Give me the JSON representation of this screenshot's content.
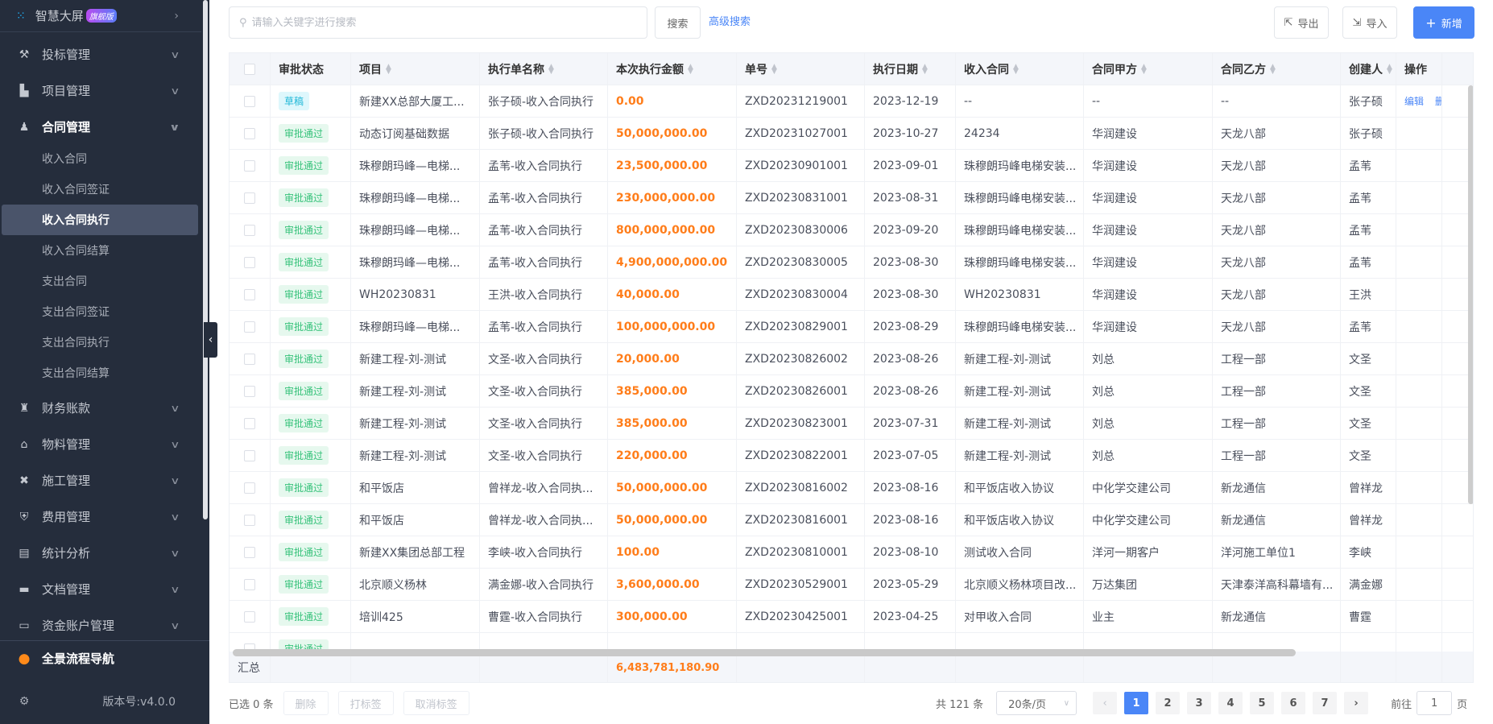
{
  "sidebar": {
    "top": {
      "label": "智慧大屏",
      "badge": "旗舰版",
      "icon": "dashboard-icon"
    },
    "items": [
      {
        "label": "投标管理",
        "icon": "gavel-icon",
        "top": 45
      },
      {
        "label": "项目管理",
        "icon": "building-icon",
        "top": 90
      },
      {
        "label": "合同管理",
        "icon": "stamp-icon",
        "top": 135,
        "open": true
      },
      {
        "label": "财务账款",
        "icon": "money-bag-icon",
        "top": 484
      },
      {
        "label": "物料管理",
        "icon": "warehouse-icon",
        "top": 529
      },
      {
        "label": "施工管理",
        "icon": "tools-icon",
        "top": 574
      },
      {
        "label": "费用管理",
        "icon": "shield-yen-icon",
        "top": 619
      },
      {
        "label": "统计分析",
        "icon": "chart-box-icon",
        "top": 664
      },
      {
        "label": "文档管理",
        "icon": "folder-icon",
        "top": 709
      },
      {
        "label": "资金账户管理",
        "icon": "card-icon",
        "top": 754
      }
    ],
    "subitems": [
      "收入合同",
      "收入合同签证",
      "收入合同执行",
      "收入合同结算",
      "支出合同",
      "支出合同签证",
      "支出合同执行",
      "支出合同结算"
    ],
    "active_sub": "收入合同执行",
    "nav_label": "全景流程导航",
    "version": "版本号:v4.0.0"
  },
  "toolbar": {
    "search_placeholder": "请输入关键字进行搜索",
    "search": "搜索",
    "advanced": "高级搜索",
    "export": "导出",
    "import": "导入",
    "add": "新增"
  },
  "table": {
    "columns": [
      "",
      "审批状态",
      "项目",
      "执行单名称",
      "本次执行金额",
      "单号",
      "执行日期",
      "收入合同",
      "合同甲方",
      "合同乙方",
      "创建人",
      "操作"
    ],
    "sortable": [
      false,
      false,
      true,
      true,
      true,
      true,
      true,
      true,
      true,
      true,
      true,
      false
    ],
    "rows": [
      [
        "草稿",
        "新建XX总部大厦工...",
        "张子硕-收入合同执行",
        "0.00",
        "ZXD20231219001",
        "2023-12-19",
        "--",
        "--",
        "--",
        "张子硕"
      ],
      [
        "审批通过",
        "动态订阅基础数据",
        "张子硕-收入合同执行",
        "50,000,000.00",
        "ZXD20231027001",
        "2023-10-27",
        "24234",
        "华润建设",
        "天龙八部",
        "张子硕"
      ],
      [
        "审批通过",
        "珠穆朗玛峰—电梯...",
        "孟苇-收入合同执行",
        "23,500,000.00",
        "ZXD20230901001",
        "2023-09-01",
        "珠穆朗玛峰电梯安装...",
        "华润建设",
        "天龙八部",
        "孟苇"
      ],
      [
        "审批通过",
        "珠穆朗玛峰—电梯...",
        "孟苇-收入合同执行",
        "230,000,000.00",
        "ZXD20230831001",
        "2023-08-31",
        "珠穆朗玛峰电梯安装...",
        "华润建设",
        "天龙八部",
        "孟苇"
      ],
      [
        "审批通过",
        "珠穆朗玛峰—电梯...",
        "孟苇-收入合同执行",
        "800,000,000.00",
        "ZXD20230830006",
        "2023-09-20",
        "珠穆朗玛峰电梯安装...",
        "华润建设",
        "天龙八部",
        "孟苇"
      ],
      [
        "审批通过",
        "珠穆朗玛峰—电梯...",
        "孟苇-收入合同执行",
        "4,900,000,000.00",
        "ZXD20230830005",
        "2023-08-30",
        "珠穆朗玛峰电梯安装...",
        "华润建设",
        "天龙八部",
        "孟苇"
      ],
      [
        "审批通过",
        "WH20230831",
        "王洪-收入合同执行",
        "40,000.00",
        "ZXD20230830004",
        "2023-08-30",
        "WH20230831",
        "华润建设",
        "天龙八部",
        "王洪"
      ],
      [
        "审批通过",
        "珠穆朗玛峰—电梯...",
        "孟苇-收入合同执行",
        "100,000,000.00",
        "ZXD20230829001",
        "2023-08-29",
        "珠穆朗玛峰电梯安装...",
        "华润建设",
        "天龙八部",
        "孟苇"
      ],
      [
        "审批通过",
        "新建工程-刘-测试",
        "文圣-收入合同执行",
        "20,000.00",
        "ZXD20230826002",
        "2023-08-26",
        "新建工程-刘-测试",
        "刘总",
        "工程一部",
        "文圣"
      ],
      [
        "审批通过",
        "新建工程-刘-测试",
        "文圣-收入合同执行",
        "385,000.00",
        "ZXD20230826001",
        "2023-08-26",
        "新建工程-刘-测试",
        "刘总",
        "工程一部",
        "文圣"
      ],
      [
        "审批通过",
        "新建工程-刘-测试",
        "文圣-收入合同执行",
        "385,000.00",
        "ZXD20230823001",
        "2023-07-31",
        "新建工程-刘-测试",
        "刘总",
        "工程一部",
        "文圣"
      ],
      [
        "审批通过",
        "新建工程-刘-测试",
        "文圣-收入合同执行",
        "220,000.00",
        "ZXD20230822001",
        "2023-07-05",
        "新建工程-刘-测试",
        "刘总",
        "工程一部",
        "文圣"
      ],
      [
        "审批通过",
        "和平饭店",
        "曾祥龙-收入合同执...",
        "50,000,000.00",
        "ZXD20230816002",
        "2023-08-16",
        "和平饭店收入协议",
        "中化学交建公司",
        "新龙通信",
        "曾祥龙"
      ],
      [
        "审批通过",
        "和平饭店",
        "曾祥龙-收入合同执...",
        "50,000,000.00",
        "ZXD20230816001",
        "2023-08-16",
        "和平饭店收入协议",
        "中化学交建公司",
        "新龙通信",
        "曾祥龙"
      ],
      [
        "审批通过",
        "新建XX集团总部工程",
        "李峡-收入合同执行",
        "100.00",
        "ZXD20230810001",
        "2023-08-10",
        "测试收入合同",
        "洋河一期客户",
        "洋河施工单位1",
        "李峡"
      ],
      [
        "审批通过",
        "北京顺义杨林",
        "满金娜-收入合同执行",
        "3,600,000.00",
        "ZXD20230529001",
        "2023-05-29",
        "北京顺义杨林项目改...",
        "万达集团",
        "天津泰洋高科幕墙有...",
        "满金娜"
      ],
      [
        "审批通过",
        "培训425",
        "曹霆-收入合同执行",
        "300,000.00",
        "ZXD20230425001",
        "2023-04-25",
        "对甲收入合同",
        "业主",
        "新龙通信",
        "曹霆"
      ],
      [
        "审批通过",
        "",
        "",
        "",
        "",
        "",
        "",
        "",
        "",
        ""
      ]
    ],
    "actions": [
      "编辑",
      "删除"
    ],
    "summary_label": "汇总",
    "summary_amount": "6,483,781,180.90"
  },
  "footer": {
    "selected": "已选 0 条",
    "delete": "删除",
    "tag": "打标签",
    "untag": "取消标签",
    "total": "共 121 条",
    "page_size": "20条/页",
    "pages": [
      "1",
      "2",
      "3",
      "4",
      "5",
      "6",
      "7"
    ],
    "current_page": "1",
    "goto": "前往",
    "goto_value": "1",
    "page_unit": "页"
  },
  "colors": {
    "primary": "#4a86f7",
    "amount": "#ff7d1a",
    "approved": "#36c27a",
    "draft": "#22b8d8",
    "sidebar": "#252d3c"
  }
}
